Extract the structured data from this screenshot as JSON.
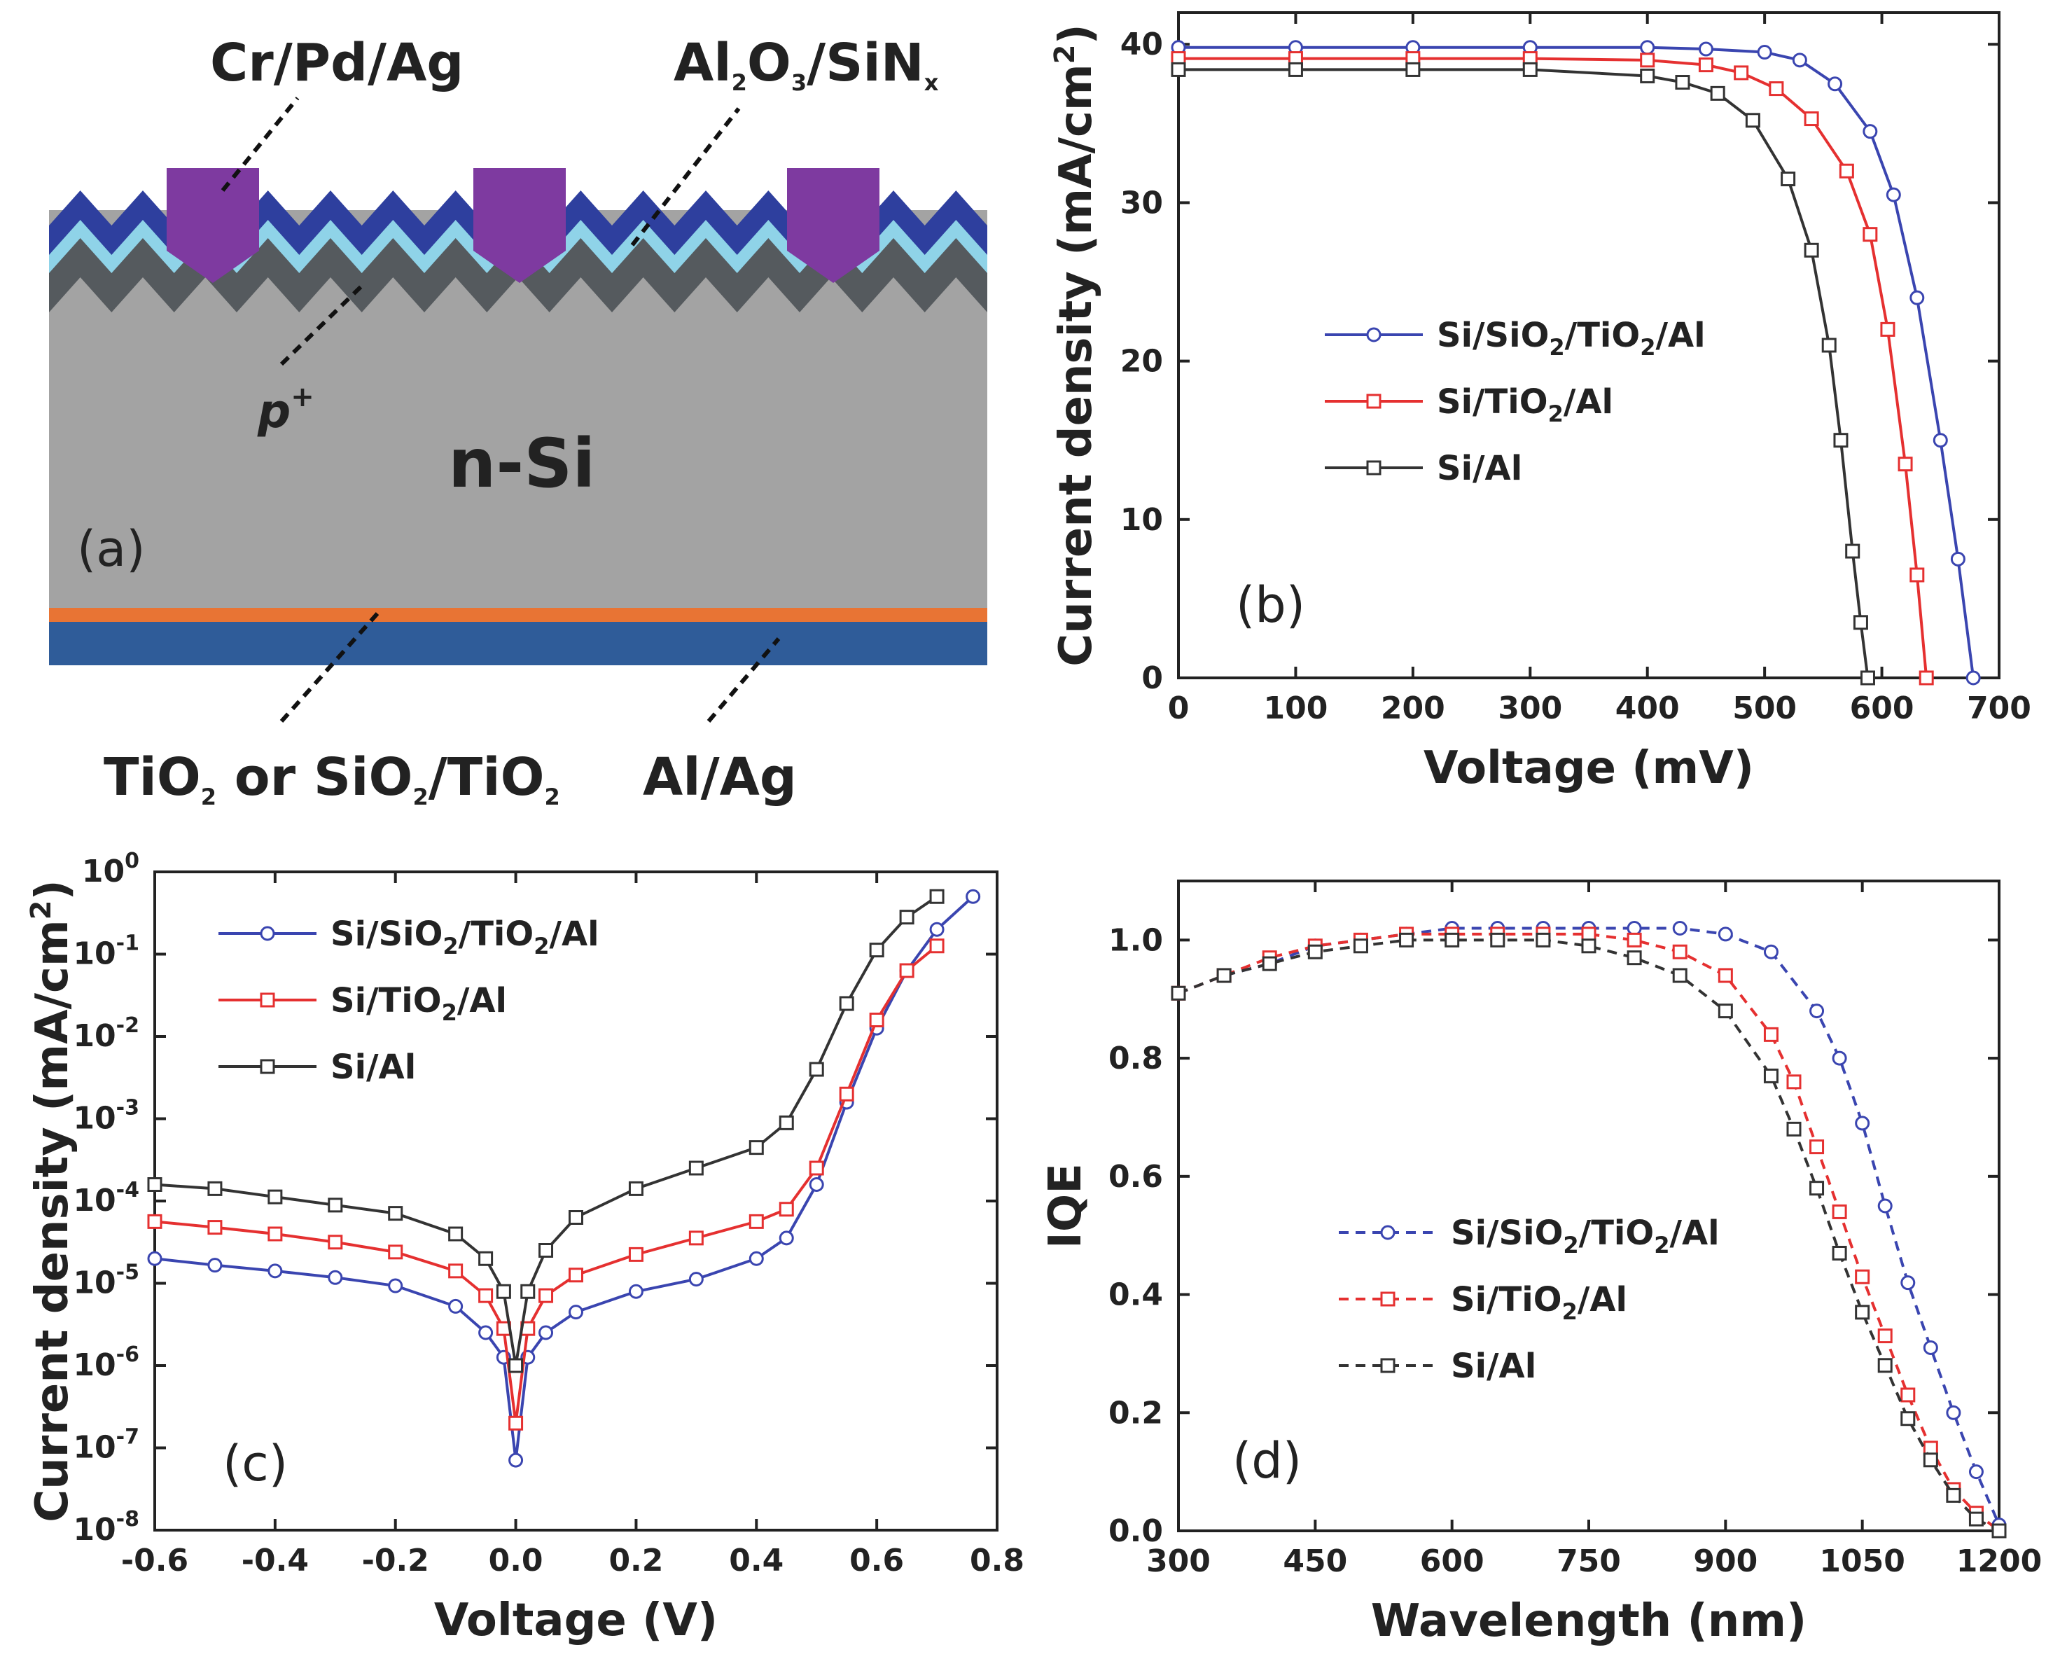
{
  "colors": {
    "blue": "#3a45b0",
    "red": "#e53030",
    "black": "#333333",
    "silicon": "#a3a3a3",
    "pplus": "#555a5e",
    "al2o3": "#8fd3e8",
    "sinx": "#2e3f9e",
    "contact": "#7e3aa0",
    "tio2": "#e87434",
    "alag": "#2f5c99"
  },
  "diagram": {
    "panel_label": "(a)",
    "labels": {
      "crpdag": "Cr/Pd/Ag",
      "al2o3_a": "Al",
      "al2o3_s1": "2",
      "al2o3_b": "O",
      "al2o3_s2": "3",
      "al2o3_c": "/SiN",
      "al2o3_s3": "x",
      "pplus": "p",
      "pplus_sup": "+",
      "nsi": "n-Si",
      "tio2_a": "TiO",
      "tio2_s1": "2",
      "tio2_b": " or SiO",
      "tio2_s2": "2",
      "tio2_c": "/TiO",
      "tio2_s3": "2",
      "alag": "Al/Ag"
    }
  },
  "chart_data": [
    {
      "id": "b",
      "type": "line",
      "panel_label": "(b)",
      "xlabel": "Voltage (mV)",
      "ylabel": "Current density (mA/cm²)",
      "ylabel_parts": {
        "main": "Current density (mA/cm",
        "sup": "2",
        "end": ")"
      },
      "xlim": [
        0,
        700
      ],
      "ylim": [
        0,
        42
      ],
      "xticks": [
        0,
        100,
        200,
        300,
        400,
        500,
        600,
        700
      ],
      "yticks": [
        0,
        10,
        20,
        30,
        40
      ],
      "series": [
        {
          "name": "Si/SiO2/TiO2/Al",
          "legend": {
            "a": "Si/SiO",
            "s1": "2",
            "b": "/TiO",
            "s2": "2",
            "c": "/Al"
          },
          "color": "blue",
          "marker": "circle",
          "x": [
            0,
            100,
            200,
            300,
            400,
            450,
            500,
            530,
            560,
            590,
            610,
            630,
            650,
            665,
            678
          ],
          "y": [
            39.8,
            39.8,
            39.8,
            39.8,
            39.8,
            39.7,
            39.5,
            39.0,
            37.5,
            34.5,
            30.5,
            24.0,
            15.0,
            7.5,
            0
          ]
        },
        {
          "name": "Si/TiO2/Al",
          "legend": {
            "a": "Si/TiO",
            "s1": "2",
            "b": "/Al",
            "s2": "",
            "c": ""
          },
          "color": "red",
          "marker": "square",
          "x": [
            0,
            100,
            200,
            300,
            400,
            450,
            480,
            510,
            540,
            570,
            590,
            605,
            620,
            630,
            638
          ],
          "y": [
            39.1,
            39.1,
            39.1,
            39.1,
            39.0,
            38.7,
            38.2,
            37.2,
            35.3,
            32.0,
            28.0,
            22.0,
            13.5,
            6.5,
            0
          ]
        },
        {
          "name": "Si/Al",
          "legend": {
            "a": "Si/Al",
            "s1": "",
            "b": "",
            "s2": "",
            "c": ""
          },
          "color": "black",
          "marker": "square",
          "x": [
            0,
            100,
            200,
            300,
            400,
            430,
            460,
            490,
            520,
            540,
            555,
            565,
            575,
            582,
            588
          ],
          "y": [
            38.4,
            38.4,
            38.4,
            38.4,
            38.0,
            37.6,
            36.9,
            35.2,
            31.5,
            27.0,
            21.0,
            15.0,
            8.0,
            3.5,
            0
          ]
        }
      ]
    },
    {
      "id": "c",
      "type": "line",
      "panel_label": "(c)",
      "xlabel": "Voltage (V)",
      "ylabel": "Current density (mA/cm²)",
      "ylabel_parts": {
        "main": "Current density (mA/cm",
        "sup": "2",
        "end": ")"
      },
      "yscale": "log",
      "xlim": [
        -0.6,
        0.8
      ],
      "ylim_exp": [
        -8,
        0
      ],
      "xticks": [
        -0.6,
        -0.4,
        -0.2,
        0.0,
        0.2,
        0.4,
        0.6,
        0.8
      ],
      "xtick_labels": [
        "-0.6",
        "-0.4",
        "-0.2",
        "0.0",
        "0.2",
        "0.4",
        "0.6",
        "0.8"
      ],
      "ytick_exps": [
        0,
        -1,
        -2,
        -3,
        -4,
        -5,
        -6,
        -7,
        -8
      ],
      "series": [
        {
          "name": "Si/SiO2/TiO2/Al",
          "legend": {
            "a": "Si/SiO",
            "s1": "2",
            "b": "/TiO",
            "s2": "2",
            "c": "/Al"
          },
          "color": "blue",
          "marker": "circle",
          "x": [
            -0.6,
            -0.5,
            -0.4,
            -0.3,
            -0.2,
            -0.1,
            -0.05,
            -0.02,
            0.0,
            0.02,
            0.05,
            0.1,
            0.2,
            0.3,
            0.4,
            0.45,
            0.5,
            0.55,
            0.6,
            0.65,
            0.7,
            0.76
          ],
          "y": [
            -4.7,
            -4.78,
            -4.85,
            -4.93,
            -5.03,
            -5.28,
            -5.6,
            -5.9,
            -7.15,
            -5.9,
            -5.6,
            -5.35,
            -5.1,
            -4.95,
            -4.7,
            -4.45,
            -3.8,
            -2.8,
            -1.9,
            -1.2,
            -0.7,
            -0.3
          ]
        },
        {
          "name": "Si/TiO2/Al",
          "legend": {
            "a": "Si/TiO",
            "s1": "2",
            "b": "/Al",
            "s2": "",
            "c": ""
          },
          "color": "red",
          "marker": "square",
          "x": [
            -0.6,
            -0.5,
            -0.4,
            -0.3,
            -0.2,
            -0.1,
            -0.05,
            -0.02,
            0.0,
            0.02,
            0.05,
            0.1,
            0.2,
            0.3,
            0.4,
            0.45,
            0.5,
            0.55,
            0.6,
            0.65,
            0.7
          ],
          "y": [
            -4.25,
            -4.32,
            -4.4,
            -4.5,
            -4.62,
            -4.85,
            -5.15,
            -5.55,
            -6.7,
            -5.55,
            -5.15,
            -4.9,
            -4.65,
            -4.45,
            -4.25,
            -4.1,
            -3.6,
            -2.7,
            -1.8,
            -1.2,
            -0.9
          ]
        },
        {
          "name": "Si/Al",
          "legend": {
            "a": "Si/Al",
            "s1": "",
            "b": "",
            "s2": "",
            "c": ""
          },
          "color": "black",
          "marker": "square",
          "x": [
            -0.6,
            -0.5,
            -0.4,
            -0.3,
            -0.2,
            -0.1,
            -0.05,
            -0.02,
            0.0,
            0.02,
            0.05,
            0.1,
            0.2,
            0.3,
            0.4,
            0.45,
            0.5,
            0.55,
            0.6,
            0.65,
            0.7
          ],
          "y": [
            -3.8,
            -3.85,
            -3.95,
            -4.05,
            -4.15,
            -4.4,
            -4.7,
            -5.1,
            -6.0,
            -5.1,
            -4.6,
            -4.2,
            -3.85,
            -3.6,
            -3.35,
            -3.05,
            -2.4,
            -1.6,
            -0.95,
            -0.55,
            -0.3
          ]
        }
      ]
    },
    {
      "id": "d",
      "type": "line",
      "panel_label": "(d)",
      "xlabel": "Wavelength (nm)",
      "ylabel": "IQE",
      "line_style": "dashed",
      "xlim": [
        300,
        1200
      ],
      "ylim": [
        0,
        1.1
      ],
      "xticks": [
        300,
        450,
        600,
        750,
        900,
        1050,
        1200
      ],
      "yticks": [
        0.0,
        0.2,
        0.4,
        0.6,
        0.8,
        1.0
      ],
      "ytick_labels": [
        "0.0",
        "0.2",
        "0.4",
        "0.6",
        "0.8",
        "1.0"
      ],
      "series": [
        {
          "name": "Si/SiO2/TiO2/Al",
          "legend": {
            "a": "Si/SiO",
            "s1": "2",
            "b": "/TiO",
            "s2": "2",
            "c": "/Al"
          },
          "color": "blue",
          "marker": "circle",
          "x": [
            300,
            350,
            400,
            450,
            500,
            550,
            600,
            650,
            700,
            750,
            800,
            850,
            900,
            950,
            1000,
            1025,
            1050,
            1075,
            1100,
            1125,
            1150,
            1175,
            1200
          ],
          "y": [
            0.91,
            0.94,
            0.96,
            0.99,
            1.0,
            1.01,
            1.02,
            1.02,
            1.02,
            1.02,
            1.02,
            1.02,
            1.01,
            0.98,
            0.88,
            0.8,
            0.69,
            0.55,
            0.42,
            0.31,
            0.2,
            0.1,
            0.01
          ]
        },
        {
          "name": "Si/TiO2/Al",
          "legend": {
            "a": "Si/TiO",
            "s1": "2",
            "b": "/Al",
            "s2": "",
            "c": ""
          },
          "color": "red",
          "marker": "square",
          "x": [
            300,
            350,
            400,
            450,
            500,
            550,
            600,
            650,
            700,
            750,
            800,
            850,
            900,
            950,
            975,
            1000,
            1025,
            1050,
            1075,
            1100,
            1125,
            1150,
            1175,
            1200
          ],
          "y": [
            0.91,
            0.94,
            0.97,
            0.99,
            1.0,
            1.01,
            1.01,
            1.01,
            1.01,
            1.01,
            1.0,
            0.98,
            0.94,
            0.84,
            0.76,
            0.65,
            0.54,
            0.43,
            0.33,
            0.23,
            0.14,
            0.07,
            0.03,
            0.0
          ]
        },
        {
          "name": "Si/Al",
          "legend": {
            "a": "Si/Al",
            "s1": "",
            "b": "",
            "s2": "",
            "c": ""
          },
          "color": "black",
          "marker": "square",
          "x": [
            300,
            350,
            400,
            450,
            500,
            550,
            600,
            650,
            700,
            750,
            800,
            850,
            900,
            950,
            975,
            1000,
            1025,
            1050,
            1075,
            1100,
            1125,
            1150,
            1175,
            1200
          ],
          "y": [
            0.91,
            0.94,
            0.96,
            0.98,
            0.99,
            1.0,
            1.0,
            1.0,
            1.0,
            0.99,
            0.97,
            0.94,
            0.88,
            0.77,
            0.68,
            0.58,
            0.47,
            0.37,
            0.28,
            0.19,
            0.12,
            0.06,
            0.02,
            0.0
          ]
        }
      ]
    }
  ]
}
